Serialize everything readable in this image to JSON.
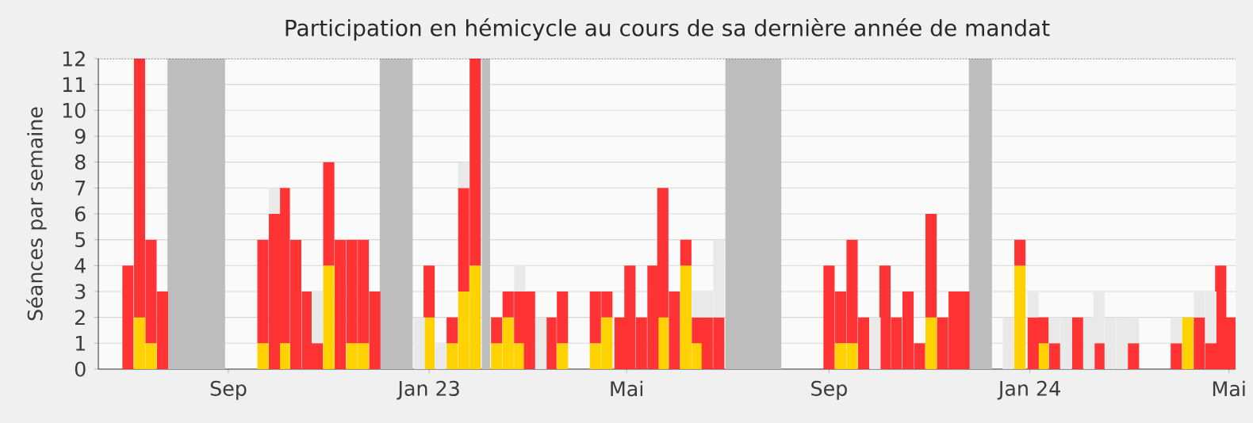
{
  "chart_data": {
    "type": "bar",
    "title": "Participation en hémicycle au cours de sa dernière année de mandat",
    "ylabel": "Séances par semaine",
    "x": [
      "2022-07-02",
      "2022-07-09",
      "2022-07-16",
      "2022-07-23",
      "2022-09-22",
      "2022-09-29",
      "2022-10-05",
      "2022-10-12",
      "2022-10-19",
      "2022-10-25",
      "2022-11-01",
      "2022-11-08",
      "2022-11-15",
      "2022-11-22",
      "2022-11-29",
      "2022-12-26",
      "2023-01-01",
      "2023-01-08",
      "2023-01-15",
      "2023-01-22",
      "2023-01-29",
      "2023-02-11",
      "2023-02-18",
      "2023-02-25",
      "2023-03-03",
      "2023-03-10",
      "2023-03-16",
      "2023-03-23",
      "2023-04-12",
      "2023-04-19",
      "2023-04-27",
      "2023-05-03",
      "2023-05-10",
      "2023-05-17",
      "2023-05-23",
      "2023-05-30",
      "2023-06-06",
      "2023-06-13",
      "2023-06-19",
      "2023-06-26",
      "2023-09-01",
      "2023-09-08",
      "2023-09-15",
      "2023-09-22",
      "2023-09-29",
      "2023-10-05",
      "2023-10-12",
      "2023-10-19",
      "2023-10-26",
      "2023-11-02",
      "2023-11-09",
      "2023-11-16",
      "2023-11-22",
      "2023-12-19",
      "2023-12-26",
      "2024-01-03",
      "2024-01-09",
      "2024-01-16",
      "2024-01-23",
      "2024-01-30",
      "2024-02-06",
      "2024-02-12",
      "2024-02-19",
      "2024-02-26",
      "2024-03-04",
      "2024-03-30",
      "2024-04-06",
      "2024-04-13",
      "2024-04-20",
      "2024-04-26",
      "2024-05-02"
    ],
    "series": [
      {
        "color": "#ffd200",
        "values": [
          null,
          2,
          1,
          null,
          1,
          null,
          1,
          null,
          null,
          null,
          4,
          null,
          1,
          1,
          null,
          null,
          2,
          null,
          1,
          3,
          4,
          1,
          2,
          1,
          null,
          null,
          null,
          1,
          1,
          2,
          null,
          null,
          null,
          null,
          2,
          null,
          4,
          1,
          null,
          null,
          null,
          1,
          1,
          null,
          null,
          null,
          null,
          null,
          null,
          2,
          null,
          null,
          null,
          null,
          4,
          null,
          1,
          null,
          null,
          null,
          null,
          null,
          null,
          null,
          null,
          null,
          2,
          null,
          null,
          null,
          null
        ]
      },
      {
        "color": "#ff3333",
        "values": [
          4,
          10,
          4,
          3,
          4,
          6,
          6,
          5,
          3,
          1,
          4,
          5,
          4,
          4,
          3,
          null,
          2,
          null,
          1,
          4,
          8,
          1,
          1,
          2,
          3,
          null,
          2,
          2,
          2,
          1,
          2,
          4,
          2,
          4,
          5,
          3,
          1,
          1,
          2,
          2,
          4,
          2,
          4,
          2,
          null,
          4,
          2,
          3,
          1,
          4,
          2,
          3,
          3,
          null,
          1,
          2,
          1,
          1,
          null,
          2,
          null,
          1,
          null,
          null,
          1,
          1,
          null,
          2,
          1,
          4,
          2
        ]
      },
      {
        "color": "#e9e9e9",
        "values": [
          null,
          null,
          null,
          null,
          null,
          1,
          null,
          null,
          null,
          2,
          null,
          null,
          null,
          null,
          null,
          2,
          null,
          1,
          null,
          1,
          null,
          null,
          null,
          1,
          null,
          2,
          null,
          null,
          null,
          null,
          null,
          null,
          null,
          null,
          null,
          null,
          null,
          1,
          1,
          3,
          null,
          null,
          null,
          null,
          2,
          null,
          null,
          null,
          null,
          null,
          null,
          null,
          null,
          2,
          null,
          1,
          null,
          1,
          2,
          null,
          2,
          2,
          2,
          2,
          1,
          1,
          null,
          1,
          2,
          null,
          null
        ]
      }
    ],
    "stacked": true,
    "xlim": [
      "2022-06-14",
      "2024-05-05"
    ],
    "xticks": [
      {
        "value": "2022-09-01",
        "label": "Sep"
      },
      {
        "value": "2023-01-01",
        "label": "Jan 23"
      },
      {
        "value": "2023-05-01",
        "label": "Mai"
      },
      {
        "value": "2023-09-01",
        "label": "Sep"
      },
      {
        "value": "2024-01-01",
        "label": "Jan 24"
      },
      {
        "value": "2024-05-01",
        "label": "Mai"
      }
    ],
    "ylim": [
      0,
      12
    ],
    "yticks": [
      0,
      1,
      2,
      3,
      4,
      5,
      6,
      7,
      8,
      9,
      10,
      11,
      12
    ],
    "grid": "y",
    "bands": [
      {
        "axis": "x",
        "from": "2022-07-26",
        "to": "2022-08-30",
        "color": "#bdbdbd"
      },
      {
        "axis": "x",
        "from": "2022-12-02",
        "to": "2022-12-22",
        "color": "#bdbdbd"
      },
      {
        "axis": "x",
        "from": "2023-02-02",
        "to": "2023-02-07",
        "color": "#bdbdbd"
      },
      {
        "axis": "x",
        "from": "2023-06-30",
        "to": "2023-08-03",
        "color": "#bdbdbd"
      },
      {
        "axis": "x",
        "from": "2023-11-25",
        "to": "2023-12-09",
        "color": "#bdbdbd"
      }
    ]
  }
}
